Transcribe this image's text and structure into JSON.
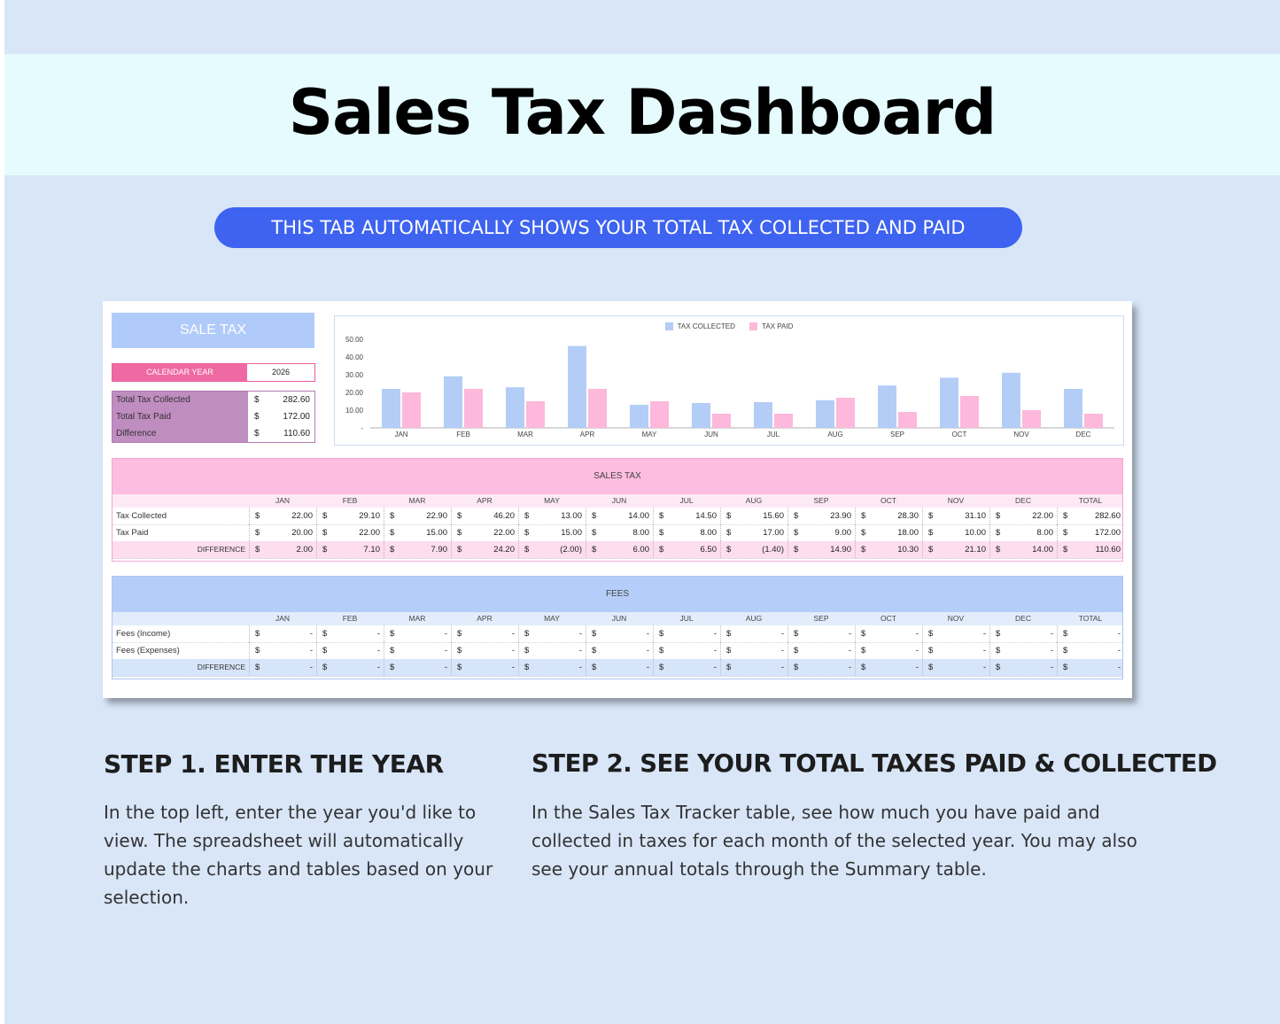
{
  "page": {
    "title": "Sales Tax Dashboard",
    "banner": "THIS TAB AUTOMATICALLY SHOWS YOUR TOTAL TAX COLLECTED AND PAID"
  },
  "sheet": {
    "header": "SALE TAX",
    "calendar_year_label": "CALENDAR YEAR",
    "calendar_year_value": "2026",
    "summary": [
      {
        "label": "Total Tax Collected",
        "currency": "$",
        "value": "282.60"
      },
      {
        "label": "Total Tax Paid",
        "currency": "$",
        "value": "172.00"
      },
      {
        "label": "Difference",
        "currency": "$",
        "value": "110.60"
      }
    ]
  },
  "chart_data": {
    "type": "bar",
    "title": "",
    "categories": [
      "JAN",
      "FEB",
      "MAR",
      "APR",
      "MAY",
      "JUN",
      "JUL",
      "AUG",
      "SEP",
      "OCT",
      "NOV",
      "DEC"
    ],
    "series": [
      {
        "name": "TAX COLLECTED",
        "color": "#b3cdf7",
        "values": [
          22.0,
          29.1,
          22.9,
          46.2,
          13.0,
          14.0,
          14.5,
          15.6,
          23.9,
          28.3,
          31.1,
          22.0
        ]
      },
      {
        "name": "TAX PAID",
        "color": "#fdb8db",
        "values": [
          20.0,
          22.0,
          15.0,
          22.0,
          15.0,
          8.0,
          8.0,
          17.0,
          9.0,
          18.0,
          10.0,
          8.0
        ]
      }
    ],
    "yticks": [
      "50.00",
      "40.00",
      "30.00",
      "20.00",
      "10.00",
      "-"
    ],
    "ylim": [
      0,
      50
    ],
    "legend": "top-center",
    "grid": false
  },
  "sales_tax": {
    "title": "SALES TAX",
    "months": [
      "JAN",
      "FEB",
      "MAR",
      "APR",
      "MAY",
      "JUN",
      "JUL",
      "AUG",
      "SEP",
      "OCT",
      "NOV",
      "DEC",
      "TOTAL"
    ],
    "rows": [
      {
        "label": "Tax Collected",
        "values": [
          "22.00",
          "29.10",
          "22.90",
          "46.20",
          "13.00",
          "14.00",
          "14.50",
          "15.60",
          "23.90",
          "28.30",
          "31.10",
          "22.00",
          "282.60"
        ]
      },
      {
        "label": "Tax Paid",
        "values": [
          "20.00",
          "22.00",
          "15.00",
          "22.00",
          "15.00",
          "8.00",
          "8.00",
          "17.00",
          "9.00",
          "18.00",
          "10.00",
          "8.00",
          "172.00"
        ]
      }
    ],
    "difference_label": "DIFFERENCE",
    "difference": [
      "2.00",
      "7.10",
      "7.90",
      "24.20",
      "(2.00)",
      "6.00",
      "6.50",
      "(1.40)",
      "14.90",
      "10.30",
      "21.10",
      "14.00",
      "110.60"
    ],
    "currency": "$"
  },
  "fees": {
    "title": "FEES",
    "months": [
      "JAN",
      "FEB",
      "MAR",
      "APR",
      "MAY",
      "JUN",
      "JUL",
      "AUG",
      "SEP",
      "OCT",
      "NOV",
      "DEC",
      "TOTAL"
    ],
    "rows": [
      {
        "label": "Fees (Income)",
        "values": [
          "-",
          "-",
          "-",
          "-",
          "-",
          "-",
          "-",
          "-",
          "-",
          "-",
          "-",
          "-",
          "-"
        ]
      },
      {
        "label": "Fees (Expenses)",
        "values": [
          "-",
          "-",
          "-",
          "-",
          "-",
          "-",
          "-",
          "-",
          "-",
          "-",
          "-",
          "-",
          "-"
        ]
      }
    ],
    "difference_label": "DIFFERENCE",
    "difference": [
      "-",
      "-",
      "-",
      "-",
      "-",
      "-",
      "-",
      "-",
      "-",
      "-",
      "-",
      "-",
      "-"
    ],
    "currency": "$"
  },
  "steps": [
    {
      "heading": "STEP 1. ENTER THE YEAR",
      "body": "In the top left, enter the year you'd like to view. The spreadsheet will automatically update the charts and tables based on your selection."
    },
    {
      "heading": "STEP 2. SEE YOUR TOTAL TAXES PAID & COLLECTED",
      "body": "In the Sales Tax Tracker table, see how much you have paid and collected in taxes for each month of the selected year. You may also see your annual totals through the Summary table."
    }
  ]
}
